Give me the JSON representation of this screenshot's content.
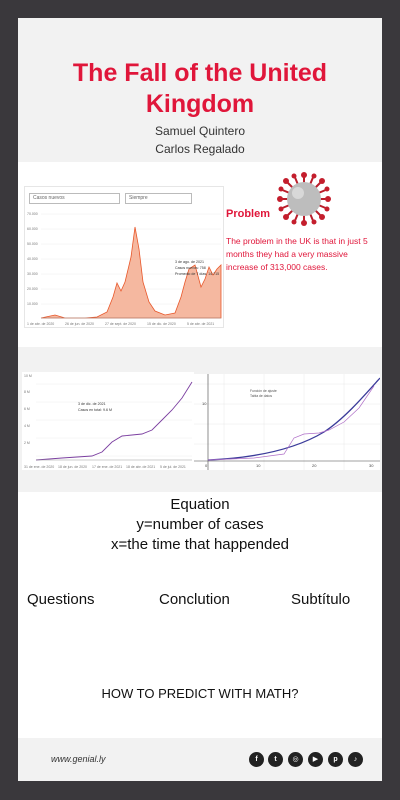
{
  "header": {
    "title": "The Fall of the United Kingdom",
    "authors": [
      "Samuel Quintero",
      "Carlos Regalado"
    ]
  },
  "problem": {
    "title": "Problem",
    "text": "The problem in the UK is that in just 5 months they had a very massive increase of 313,000 cases."
  },
  "cases_chart": {
    "dropdown_left": "Casos nuevos",
    "dropdown_right": "Siempre",
    "y_ticks": [
      "70.000",
      "60.000",
      "50.000",
      "40.000",
      "30.000",
      "20.000",
      "10.000"
    ],
    "x_ticks": [
      "1 de abr. de 2020",
      "26 de jun. de 2020",
      "27 de sept. de 2020",
      "15 de dic. de 2020",
      "5 de abr. de 2021"
    ],
    "tooltip": [
      "3 de ago. de 2021",
      "Casos nuevos: 758",
      "Promedio de 7 días: 14.715"
    ]
  },
  "cumulative_chart": {
    "y_ticks": [
      "10 M",
      "8 M",
      "6 M",
      "4 M",
      "2 M"
    ],
    "x_ticks": [
      "31 de ene. de 2020",
      "18 de jun. de 2020",
      "17 de ene. de 2021",
      "18 de abr. de 2021",
      "5 de jul. de 2021"
    ],
    "tooltip": [
      "3 de dic. de 2021",
      "Casos en total: 9.6 M"
    ]
  },
  "fit_chart": {
    "x_ticks": [
      "0",
      "10",
      "20",
      "30"
    ],
    "y_tick": "10",
    "legend": [
      "Función de ajuste",
      "Tabla de datos"
    ]
  },
  "equation": {
    "title": "Equation",
    "y_def": "y=number of cases",
    "x_def": "x=the time that happended"
  },
  "links": {
    "questions": "Questions",
    "conclusion": "Conclution",
    "subtitle": "Subtítulo"
  },
  "question": "HOW TO PREDICT WITH MATH?",
  "footer": {
    "url": "www.genial.ly",
    "social_icons": [
      "facebook-icon",
      "twitter-icon",
      "instagram-icon",
      "youtube-icon",
      "pinterest-icon",
      "tiktok-icon"
    ]
  },
  "colors": {
    "accent": "#e0163a",
    "background": "#3a383c",
    "panel": "#f2f2f2"
  }
}
